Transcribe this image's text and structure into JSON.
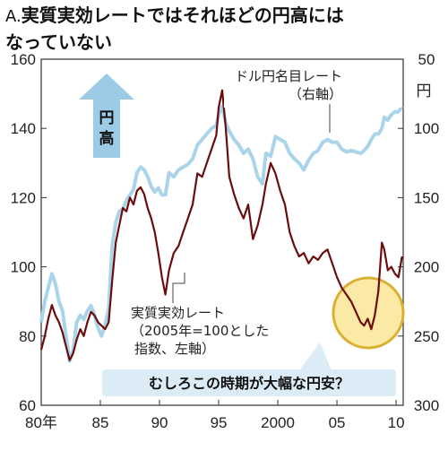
{
  "title": {
    "prefix": "A.",
    "line1": "実質実効レートではそれほどの円高には",
    "line2": "なっていない"
  },
  "arrow_label": [
    "円",
    "高"
  ],
  "left_axis_ticks": [
    "160",
    "140",
    "120",
    "100",
    "80",
    "60"
  ],
  "right_axis_ticks": [
    "50",
    "100",
    "150",
    "200",
    "250",
    "300"
  ],
  "right_axis_unit": "円",
  "x_ticks": [
    "80年",
    "85",
    "90",
    "95",
    "2000",
    "05",
    "10"
  ],
  "annotations": {
    "nominal": [
      "ドル円名目レート",
      "（右軸）"
    ],
    "real": [
      "実質実効レート",
      "（2005年=100とした",
      "指数、左軸）"
    ]
  },
  "callout": "むしろこの時期が大幅な円安？",
  "colors": {
    "real_line": "#6b0d0d",
    "nominal_line": "#a9d4ea",
    "arrow": "#9ccbe6",
    "highlight_fill": "#fbe9a6",
    "highlight_stroke": "#d9b030",
    "callout_bg": "#dcecf6"
  },
  "chart_data": {
    "type": "line",
    "xlim": [
      1980,
      2010.6
    ],
    "ylim_left": [
      60,
      160
    ],
    "ylim_right": [
      50,
      300
    ],
    "right_axis_inverted": true,
    "series": [
      {
        "name": "実質実効レート",
        "axis": "left",
        "x": [
          1980.0,
          1980.3,
          1980.6,
          1980.9,
          1981.2,
          1981.5,
          1981.8,
          1982.1,
          1982.4,
          1982.7,
          1983.0,
          1983.3,
          1983.6,
          1983.9,
          1984.2,
          1984.5,
          1984.8,
          1985.1,
          1985.4,
          1985.7,
          1986.0,
          1986.3,
          1986.6,
          1986.9,
          1987.2,
          1987.5,
          1987.8,
          1988.1,
          1988.4,
          1988.7,
          1989.0,
          1989.3,
          1989.6,
          1989.9,
          1990.2,
          1990.5,
          1990.8,
          1991.2,
          1991.6,
          1992.0,
          1992.4,
          1992.8,
          1993.2,
          1993.6,
          1994.0,
          1994.4,
          1994.8,
          1995.0,
          1995.3,
          1995.6,
          1995.9,
          1996.3,
          1996.7,
          1997.1,
          1997.5,
          1997.9,
          1998.3,
          1998.7,
          1999.0,
          1999.4,
          1999.8,
          2000.2,
          2000.6,
          2001.0,
          2001.4,
          2001.8,
          2002.2,
          2002.6,
          2003.0,
          2003.4,
          2003.8,
          2004.2,
          2004.6,
          2005.0,
          2005.4,
          2005.8,
          2006.2,
          2006.6,
          2007.0,
          2007.3,
          2007.6,
          2007.9,
          2008.2,
          2008.5,
          2008.8,
          2009.0,
          2009.3,
          2009.6,
          2009.9,
          2010.2,
          2010.5
        ],
        "values": [
          76,
          80,
          85,
          89,
          86,
          84,
          81,
          77,
          73,
          75,
          79,
          82,
          80,
          84,
          87,
          86,
          84,
          83,
          82,
          84,
          96,
          107,
          112,
          117,
          116,
          120,
          118,
          122,
          123,
          121,
          117,
          114,
          110,
          104,
          97,
          92,
          99,
          104,
          106,
          110,
          114,
          118,
          127,
          126,
          130,
          134,
          138,
          146,
          151,
          140,
          126,
          121,
          117,
          114,
          118,
          108,
          112,
          118,
          124,
          130,
          127,
          122,
          118,
          110,
          106,
          103,
          104,
          101,
          103,
          102,
          104,
          105,
          101,
          97,
          94,
          92,
          90,
          87,
          84,
          83,
          85,
          82,
          86,
          93,
          107,
          105,
          99,
          100,
          98,
          97,
          103
        ]
      },
      {
        "name": "ドル円名目レート",
        "axis": "right",
        "x": [
          1980.0,
          1980.3,
          1980.6,
          1980.9,
          1981.2,
          1981.5,
          1981.8,
          1982.1,
          1982.4,
          1982.7,
          1983.0,
          1983.3,
          1983.6,
          1983.9,
          1984.2,
          1984.5,
          1984.8,
          1985.1,
          1985.4,
          1985.7,
          1986.0,
          1986.3,
          1986.6,
          1986.9,
          1987.2,
          1987.5,
          1987.8,
          1988.1,
          1988.4,
          1988.7,
          1989.0,
          1989.3,
          1989.6,
          1989.9,
          1990.2,
          1990.5,
          1990.8,
          1991.2,
          1991.6,
          1992.0,
          1992.4,
          1992.8,
          1993.2,
          1993.6,
          1994.0,
          1994.4,
          1994.8,
          1995.0,
          1995.3,
          1995.6,
          1995.9,
          1996.3,
          1996.7,
          1997.1,
          1997.5,
          1997.9,
          1998.3,
          1998.7,
          1999.0,
          1999.4,
          1999.8,
          2000.2,
          2000.6,
          2001.0,
          2001.4,
          2001.8,
          2002.2,
          2002.6,
          2003.0,
          2003.4,
          2003.8,
          2004.2,
          2004.6,
          2005.0,
          2005.4,
          2005.8,
          2006.2,
          2006.6,
          2007.0,
          2007.3,
          2007.6,
          2007.9,
          2008.2,
          2008.5,
          2008.8,
          2009.0,
          2009.3,
          2009.6,
          2009.9,
          2010.2,
          2010.5
        ],
        "values": [
          240,
          225,
          215,
          205,
          212,
          225,
          232,
          250,
          268,
          260,
          240,
          235,
          238,
          232,
          228,
          235,
          244,
          250,
          242,
          230,
          185,
          168,
          160,
          158,
          152,
          148,
          144,
          132,
          128,
          130,
          135,
          142,
          146,
          143,
          148,
          148,
          132,
          135,
          130,
          128,
          126,
          122,
          112,
          108,
          104,
          100,
          98,
          90,
          84,
          96,
          102,
          108,
          112,
          118,
          115,
          122,
          135,
          140,
          118,
          120,
          106,
          108,
          110,
          118,
          122,
          125,
          130,
          123,
          118,
          116,
          110,
          108,
          110,
          110,
          115,
          117,
          116,
          117,
          118,
          116,
          113,
          108,
          104,
          104,
          100,
          92,
          94,
          90,
          88,
          88,
          84
        ]
      }
    ]
  }
}
